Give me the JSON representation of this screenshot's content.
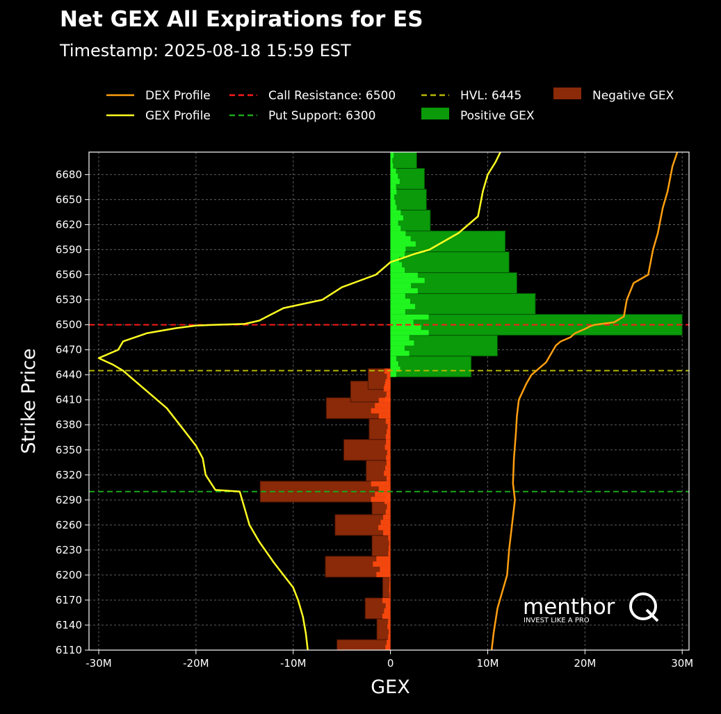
{
  "header": {
    "title": "Net GEX All Expirations for ES",
    "subtitle": "Timestamp: 2025-08-18 15:59 EST"
  },
  "watermark": {
    "brand": "menthor",
    "letter": "Q",
    "tagline": "INVEST LIKE A PRO"
  },
  "colors": {
    "background": "#000000",
    "gex_profile": "#ffff22",
    "dex_profile": "#ff9f10",
    "call_resistance": "#ff1a1a",
    "put_support": "#1aa81a",
    "hvl": "#b8b800",
    "positive_gex": "#0a9a0a",
    "negative_gex": "#8a2a08",
    "positive_inner": "#22ff22",
    "negative_inner": "#ff4a10",
    "grid": "#777777"
  },
  "chart_data": {
    "type": "bar",
    "orientation": "horizontal",
    "xlabel": "GEX",
    "ylabel": "Strike Price",
    "xlim": [
      -31000000,
      30700000
    ],
    "ylim": [
      6110,
      6707
    ],
    "x_ticks": [
      -30000000,
      -20000000,
      -10000000,
      0,
      10000000,
      20000000,
      30000000
    ],
    "x_tick_labels": [
      "-30M",
      "-20M",
      "-10M",
      "0",
      "10M",
      "20M",
      "30M"
    ],
    "y_ticks": [
      6110,
      6140,
      6170,
      6200,
      6230,
      6260,
      6290,
      6320,
      6350,
      6380,
      6410,
      6440,
      6470,
      6500,
      6530,
      6560,
      6590,
      6620,
      6650,
      6680
    ],
    "grid": true,
    "legend_position": "top",
    "legend": {
      "dex_profile": "DEX Profile",
      "gex_profile": "GEX Profile",
      "call_resistance": "Call Resistance: 6500",
      "put_support": "Put Support: 6300",
      "hvl": "HVL: 6445",
      "positive_gex": "Positive GEX",
      "negative_gex": "Negative GEX"
    },
    "levels": {
      "call_resistance": 6500,
      "put_support": 6300,
      "hvl": 6445
    },
    "gex_bars": [
      {
        "strike": 6110,
        "value": -5500000
      },
      {
        "strike": 6135,
        "value": -1400000
      },
      {
        "strike": 6160,
        "value": -2600000
      },
      {
        "strike": 6185,
        "value": -800000
      },
      {
        "strike": 6210,
        "value": -6700000
      },
      {
        "strike": 6235,
        "value": -1900000
      },
      {
        "strike": 6260,
        "value": -5700000
      },
      {
        "strike": 6285,
        "value": -1900000
      },
      {
        "strike": 6300,
        "value": -13400000
      },
      {
        "strike": 6325,
        "value": -2500000
      },
      {
        "strike": 6350,
        "value": -4800000
      },
      {
        "strike": 6375,
        "value": -2200000
      },
      {
        "strike": 6400,
        "value": -6600000
      },
      {
        "strike": 6420,
        "value": -4100000
      },
      {
        "strike": 6435,
        "value": -2300000
      },
      {
        "strike": 6450,
        "value": 8300000
      },
      {
        "strike": 6475,
        "value": 11000000
      },
      {
        "strike": 6500,
        "value": 30000000
      },
      {
        "strike": 6525,
        "value": 14900000
      },
      {
        "strike": 6550,
        "value": 13000000
      },
      {
        "strike": 6575,
        "value": 12200000
      },
      {
        "strike": 6600,
        "value": 11800000
      },
      {
        "strike": 6625,
        "value": 4100000
      },
      {
        "strike": 6650,
        "value": 3700000
      },
      {
        "strike": 6675,
        "value": 3500000
      },
      {
        "strike": 6700,
        "value": 2700000
      }
    ],
    "gex_profile": {
      "x": [
        -8500000,
        -8700000,
        -9000000,
        -9500000,
        -10000000,
        -11000000,
        -12000000,
        -13500000,
        -14500000,
        -15000000,
        -15500000,
        -18000000,
        -19000000,
        -19300000,
        -20000000,
        -21000000,
        -22000000,
        -23000000,
        -24500000,
        -26000000,
        -27500000,
        -28500000,
        -30000000,
        -28000000,
        -27500000,
        -25000000,
        -22000000,
        -20000000,
        -18000000,
        -15000000,
        -13500000,
        -11000000,
        -7000000,
        -5000000,
        -1500000,
        0,
        2500000,
        4000000,
        7000000,
        9000000,
        9500000,
        10000000,
        10800000,
        11300000
      ],
      "y": [
        6110,
        6130,
        6150,
        6170,
        6185,
        6200,
        6215,
        6240,
        6260,
        6280,
        6300,
        6302,
        6320,
        6340,
        6355,
        6370,
        6385,
        6400,
        6415,
        6430,
        6445,
        6452,
        6460,
        6470,
        6480,
        6490,
        6496,
        6499,
        6500,
        6501,
        6505,
        6520,
        6530,
        6545,
        6560,
        6575,
        6585,
        6590,
        6610,
        6630,
        6660,
        6680,
        6695,
        6707
      ]
    },
    "dex_profile": {
      "x": [
        10400000,
        10600000,
        11000000,
        12000000,
        12200000,
        12500000,
        12800000,
        12600000,
        12700000,
        12900000,
        13000000,
        13200000,
        14000000,
        14500000,
        15000000,
        16000000,
        16500000,
        17000000,
        17500000,
        18500000,
        19000000,
        20000000,
        20500000,
        21000000,
        23000000,
        24000000,
        24300000,
        25000000,
        26500000,
        27000000,
        27500000,
        28000000,
        28500000,
        29000000,
        29500000
      ],
      "y": [
        6110,
        6130,
        6160,
        6200,
        6230,
        6260,
        6290,
        6310,
        6340,
        6370,
        6390,
        6410,
        6430,
        6440,
        6445,
        6455,
        6465,
        6475,
        6480,
        6485,
        6490,
        6495,
        6498,
        6500,
        6503,
        6510,
        6530,
        6550,
        6560,
        6590,
        6610,
        6640,
        6660,
        6690,
        6707
      ]
    }
  }
}
